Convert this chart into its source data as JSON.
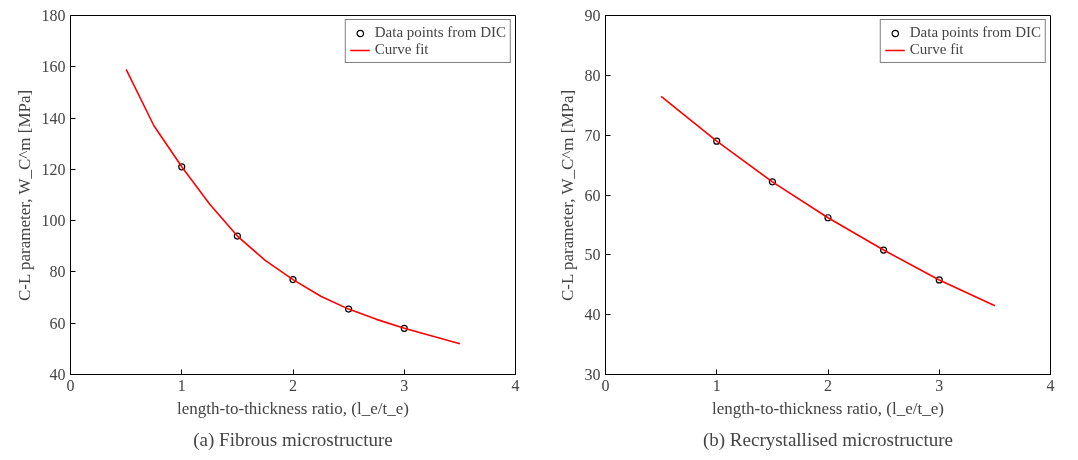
{
  "chart_data": [
    {
      "type": "scatter",
      "xlabel": "length-to-thickness ratio, (l_e/t_e)",
      "ylabel": "C-L parameter, W_C^m [MPa]",
      "annotations": [
        "(a) Fibrous microstructure"
      ],
      "xlim": [
        0,
        4
      ],
      "ylim": [
        40,
        180
      ],
      "xticks": [
        0,
        1,
        2,
        3,
        4
      ],
      "yticks": [
        40,
        60,
        80,
        100,
        120,
        140,
        160,
        180
      ],
      "grid": false,
      "legend": "top right",
      "series": [
        {
          "name": "Data points from DIC",
          "marker": "circle",
          "color": "#000000",
          "x": [
            1,
            1.5,
            2,
            2.5,
            3
          ],
          "values": [
            121,
            94,
            77,
            65.5,
            58
          ]
        },
        {
          "name": "Curve fit",
          "type": "line",
          "line_style": "solid",
          "color": "#ff0000",
          "x": [
            0.5,
            0.75,
            1,
            1.25,
            1.5,
            1.75,
            2,
            2.25,
            2.5,
            2.75,
            3,
            3.25,
            3.5
          ],
          "values": [
            159,
            137,
            121,
            106.5,
            94,
            84.5,
            77,
            70.5,
            65.5,
            61.5,
            58,
            55,
            52
          ]
        }
      ]
    },
    {
      "type": "scatter",
      "xlabel": "length-to-thickness ratio, (l_e/t_e)",
      "ylabel": "C-L parameter, W_C^m [MPa]",
      "annotations": [
        "(b) Recrystallised microstructure"
      ],
      "xlim": [
        0,
        4
      ],
      "ylim": [
        30,
        90
      ],
      "xticks": [
        0,
        1,
        2,
        3,
        4
      ],
      "yticks": [
        30,
        40,
        50,
        60,
        70,
        80,
        90
      ],
      "grid": false,
      "legend": "top right",
      "series": [
        {
          "name": "Data points from DIC",
          "marker": "circle",
          "color": "#000000",
          "x": [
            1,
            1.5,
            2,
            2.5,
            3
          ],
          "values": [
            69,
            62.2,
            56.2,
            50.8,
            45.8
          ]
        },
        {
          "name": "Curve fit",
          "type": "line",
          "line_style": "solid",
          "color": "#ff0000",
          "x": [
            0.5,
            1,
            1.5,
            2,
            2.5,
            3,
            3.5
          ],
          "values": [
            76.5,
            69,
            62.2,
            56.2,
            50.8,
            45.8,
            41.5
          ]
        }
      ]
    }
  ]
}
